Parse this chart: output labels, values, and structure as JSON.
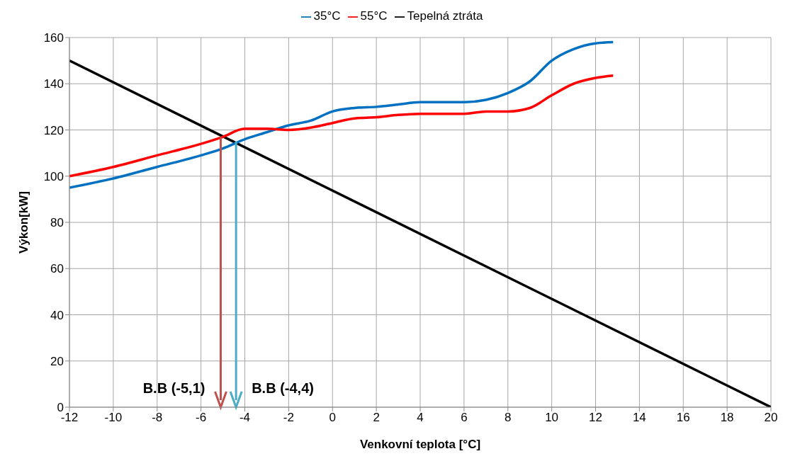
{
  "chart_data": {
    "type": "line",
    "xlabel": "Venkovní teplota [°C]",
    "ylabel": "Výkon[kW]",
    "xlim": [
      -12,
      20
    ],
    "xticks": [
      -12,
      -10,
      -8,
      -6,
      -4,
      -2,
      0,
      2,
      4,
      6,
      8,
      10,
      12,
      14,
      16,
      18,
      20
    ],
    "ylim": [
      0,
      160
    ],
    "yticks": [
      0,
      20,
      40,
      60,
      80,
      100,
      120,
      140,
      160
    ],
    "grid": true,
    "legend": "top",
    "marker": "none",
    "series": [
      {
        "name": "Tepelná ztráta",
        "color": "#000000",
        "x": [
          -12,
          20
        ],
        "values": [
          150,
          0
        ]
      },
      {
        "name": "35°C",
        "color": "#0070c0",
        "x": [
          -12,
          -10,
          -8,
          -6,
          -5,
          -4,
          -3,
          -2,
          -1,
          0,
          1,
          2,
          3,
          4,
          5,
          6,
          7,
          8,
          9,
          10,
          11,
          12,
          12.8
        ],
        "values": [
          95,
          99,
          104,
          109,
          112,
          116,
          119,
          122,
          124,
          128,
          129.5,
          130,
          131,
          132,
          132,
          132,
          133,
          136,
          141,
          150,
          155,
          157.5,
          158
        ]
      },
      {
        "name": "55°C",
        "color": "#ff0000",
        "x": [
          -12,
          -10,
          -8,
          -6,
          -5,
          -4,
          -3,
          -2,
          -1,
          0,
          1,
          2,
          3,
          4,
          5,
          6,
          7,
          8,
          9,
          10,
          11,
          12,
          12.8
        ],
        "values": [
          100,
          104,
          109,
          114,
          117,
          120.5,
          120.5,
          120,
          121,
          123,
          125,
          125.5,
          126.5,
          127,
          127,
          127,
          128,
          128,
          129.5,
          135,
          140,
          142.5,
          143.5
        ]
      }
    ],
    "annotations": [
      {
        "text": "B.B (-5,1)",
        "x": -5.1,
        "y": 117
      },
      {
        "text": "B.B (-4,4)",
        "x": -4.4,
        "y": 115
      }
    ]
  }
}
